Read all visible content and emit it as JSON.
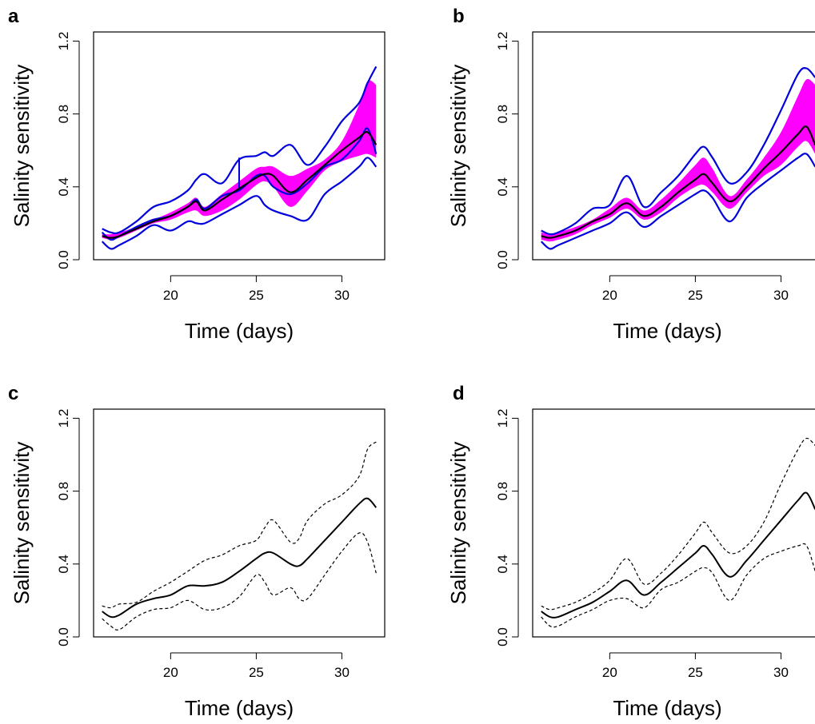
{
  "chart_data": [
    {
      "panel": "a",
      "type": "line",
      "xlabel": "Time (days)",
      "ylabel": "Salinity sensitivity",
      "xlim": [
        15.5,
        32.5
      ],
      "ylim": [
        0,
        1.25
      ],
      "xticks": [
        "20",
        "25",
        "30"
      ],
      "yticks": [
        "0.0",
        "0.4",
        "0.8",
        "1.2"
      ],
      "grid": false,
      "colors": {
        "band": "#ff00ff",
        "bounds": "#0000dd",
        "mean": "#000000"
      },
      "x": [
        16,
        16.5,
        17,
        18,
        19,
        20,
        21,
        21.5,
        22,
        23,
        24,
        25,
        25.5,
        26,
        27,
        28,
        29,
        30,
        31,
        31.5,
        32
      ],
      "series": [
        {
          "style": "mean",
          "values": [
            0.13,
            0.12,
            0.13,
            0.17,
            0.21,
            0.24,
            0.29,
            0.32,
            0.27,
            0.33,
            0.39,
            0.45,
            0.47,
            0.46,
            0.37,
            0.44,
            0.52,
            0.6,
            0.67,
            0.7,
            0.63
          ]
        },
        {
          "style": "band",
          "upper": [
            0.14,
            0.14,
            0.15,
            0.18,
            0.22,
            0.26,
            0.31,
            0.34,
            0.29,
            0.36,
            0.43,
            0.5,
            0.51,
            0.51,
            0.46,
            0.5,
            0.55,
            0.65,
            0.85,
            0.98,
            0.96
          ],
          "lower": [
            0.12,
            0.11,
            0.12,
            0.16,
            0.2,
            0.22,
            0.26,
            0.27,
            0.24,
            0.27,
            0.33,
            0.41,
            0.43,
            0.4,
            0.29,
            0.38,
            0.49,
            0.54,
            0.57,
            0.58,
            0.56
          ]
        },
        {
          "style": "bound",
          "values": [
            0.17,
            0.15,
            0.15,
            0.21,
            0.29,
            0.32,
            0.38,
            0.44,
            0.47,
            0.42,
            0.55,
            0.57,
            0.59,
            0.57,
            0.63,
            0.52,
            0.62,
            0.76,
            0.86,
            0.97,
            1.06
          ]
        },
        {
          "style": "bound",
          "values": [
            0.1,
            0.06,
            0.08,
            0.13,
            0.19,
            0.16,
            0.21,
            0.2,
            0.2,
            0.25,
            0.3,
            0.35,
            0.3,
            0.27,
            0.24,
            0.22,
            0.36,
            0.43,
            0.51,
            0.56,
            0.51
          ]
        },
        {
          "style": "bound",
          "values": [
            0.15,
            0.11,
            0.13,
            0.18,
            0.22,
            0.24,
            0.29,
            0.33,
            0.28,
            0.35,
            0.38,
            0.46,
            0.46,
            0.4,
            0.36,
            0.42,
            0.51,
            0.55,
            0.65,
            0.72,
            0.58
          ]
        }
      ],
      "vertical_segment": {
        "x": 24,
        "y_from": 0.38,
        "y_to": 0.56
      }
    },
    {
      "panel": "b",
      "type": "line",
      "xlabel": "Time (days)",
      "ylabel": "Salinity sensitivity",
      "xlim": [
        15.5,
        32.5
      ],
      "ylim": [
        0,
        1.25
      ],
      "xticks": [
        "20",
        "25",
        "30"
      ],
      "yticks": [
        "0.0",
        "0.4",
        "0.8",
        "1.2"
      ],
      "grid": false,
      "colors": {
        "band": "#ff00ff",
        "bounds": "#0000dd",
        "mean": "#000000"
      },
      "x": [
        16,
        16.5,
        17,
        18,
        19,
        20,
        21,
        22,
        23,
        24,
        25,
        25.5,
        26,
        27,
        28,
        29,
        30,
        31,
        31.5,
        32
      ],
      "series": [
        {
          "style": "mean",
          "values": [
            0.13,
            0.12,
            0.13,
            0.16,
            0.21,
            0.25,
            0.31,
            0.24,
            0.29,
            0.37,
            0.44,
            0.47,
            0.42,
            0.32,
            0.4,
            0.5,
            0.59,
            0.69,
            0.73,
            0.63
          ]
        },
        {
          "style": "band",
          "upper": [
            0.15,
            0.14,
            0.15,
            0.18,
            0.22,
            0.28,
            0.34,
            0.27,
            0.33,
            0.42,
            0.52,
            0.56,
            0.5,
            0.35,
            0.44,
            0.56,
            0.7,
            0.9,
            0.99,
            0.96
          ],
          "lower": [
            0.11,
            0.1,
            0.11,
            0.14,
            0.19,
            0.23,
            0.28,
            0.22,
            0.26,
            0.34,
            0.4,
            0.41,
            0.37,
            0.28,
            0.37,
            0.46,
            0.52,
            0.62,
            0.65,
            0.58
          ]
        },
        {
          "style": "bound",
          "values": [
            0.16,
            0.14,
            0.15,
            0.2,
            0.28,
            0.3,
            0.46,
            0.29,
            0.37,
            0.46,
            0.58,
            0.62,
            0.56,
            0.42,
            0.48,
            0.63,
            0.82,
            1.02,
            1.05,
            1.0
          ]
        },
        {
          "style": "bound",
          "values": [
            0.1,
            0.06,
            0.08,
            0.12,
            0.16,
            0.2,
            0.26,
            0.18,
            0.24,
            0.3,
            0.36,
            0.38,
            0.34,
            0.21,
            0.34,
            0.42,
            0.49,
            0.56,
            0.58,
            0.51
          ]
        }
      ]
    },
    {
      "panel": "c",
      "type": "line",
      "xlabel": "Time (days)",
      "ylabel": "Salinity sensitivity",
      "xlim": [
        15.5,
        32.5
      ],
      "ylim": [
        0,
        1.25
      ],
      "xticks": [
        "20",
        "25",
        "30"
      ],
      "yticks": [
        "0.0",
        "0.4",
        "0.8",
        "1.2"
      ],
      "grid": false,
      "x": [
        16,
        16.5,
        17,
        18,
        19,
        20,
        21,
        22,
        23,
        24,
        25,
        25.5,
        26,
        27,
        27.5,
        28,
        29,
        30,
        31,
        31.5,
        32
      ],
      "series": [
        {
          "style": "solid",
          "values": [
            0.14,
            0.11,
            0.12,
            0.18,
            0.21,
            0.23,
            0.28,
            0.28,
            0.3,
            0.36,
            0.43,
            0.46,
            0.46,
            0.4,
            0.39,
            0.43,
            0.53,
            0.63,
            0.73,
            0.76,
            0.71
          ]
        },
        {
          "style": "dashed",
          "values": [
            0.17,
            0.16,
            0.18,
            0.19,
            0.25,
            0.3,
            0.36,
            0.42,
            0.45,
            0.5,
            0.53,
            0.6,
            0.64,
            0.52,
            0.54,
            0.64,
            0.73,
            0.78,
            0.88,
            1.03,
            1.07
          ]
        },
        {
          "style": "dashed",
          "values": [
            0.1,
            0.06,
            0.04,
            0.11,
            0.15,
            0.16,
            0.2,
            0.15,
            0.16,
            0.22,
            0.34,
            0.3,
            0.23,
            0.27,
            0.21,
            0.21,
            0.34,
            0.47,
            0.57,
            0.52,
            0.35
          ]
        }
      ]
    },
    {
      "panel": "d",
      "type": "line",
      "xlabel": "Time (days)",
      "ylabel": "Salinity sensitivity",
      "xlim": [
        15.5,
        32.5
      ],
      "ylim": [
        0,
        1.25
      ],
      "xticks": [
        "20",
        "25",
        "30"
      ],
      "yticks": [
        "0.0",
        "0.4",
        "0.8",
        "1.2"
      ],
      "grid": false,
      "x": [
        16,
        16.5,
        17,
        18,
        19,
        20,
        21,
        22,
        23,
        24,
        25,
        25.5,
        26,
        27,
        28,
        29,
        30,
        31,
        31.5,
        32
      ],
      "series": [
        {
          "style": "solid",
          "values": [
            0.14,
            0.11,
            0.11,
            0.15,
            0.19,
            0.25,
            0.31,
            0.23,
            0.3,
            0.38,
            0.46,
            0.5,
            0.45,
            0.33,
            0.42,
            0.53,
            0.64,
            0.75,
            0.79,
            0.7
          ]
        },
        {
          "style": "dashed",
          "values": [
            0.17,
            0.15,
            0.16,
            0.19,
            0.24,
            0.31,
            0.43,
            0.29,
            0.35,
            0.45,
            0.57,
            0.63,
            0.57,
            0.46,
            0.5,
            0.63,
            0.84,
            1.03,
            1.09,
            1.05
          ]
        },
        {
          "style": "dashed",
          "values": [
            0.11,
            0.06,
            0.06,
            0.11,
            0.15,
            0.2,
            0.21,
            0.16,
            0.26,
            0.3,
            0.36,
            0.38,
            0.35,
            0.2,
            0.34,
            0.43,
            0.47,
            0.5,
            0.5,
            0.36
          ]
        }
      ]
    }
  ]
}
